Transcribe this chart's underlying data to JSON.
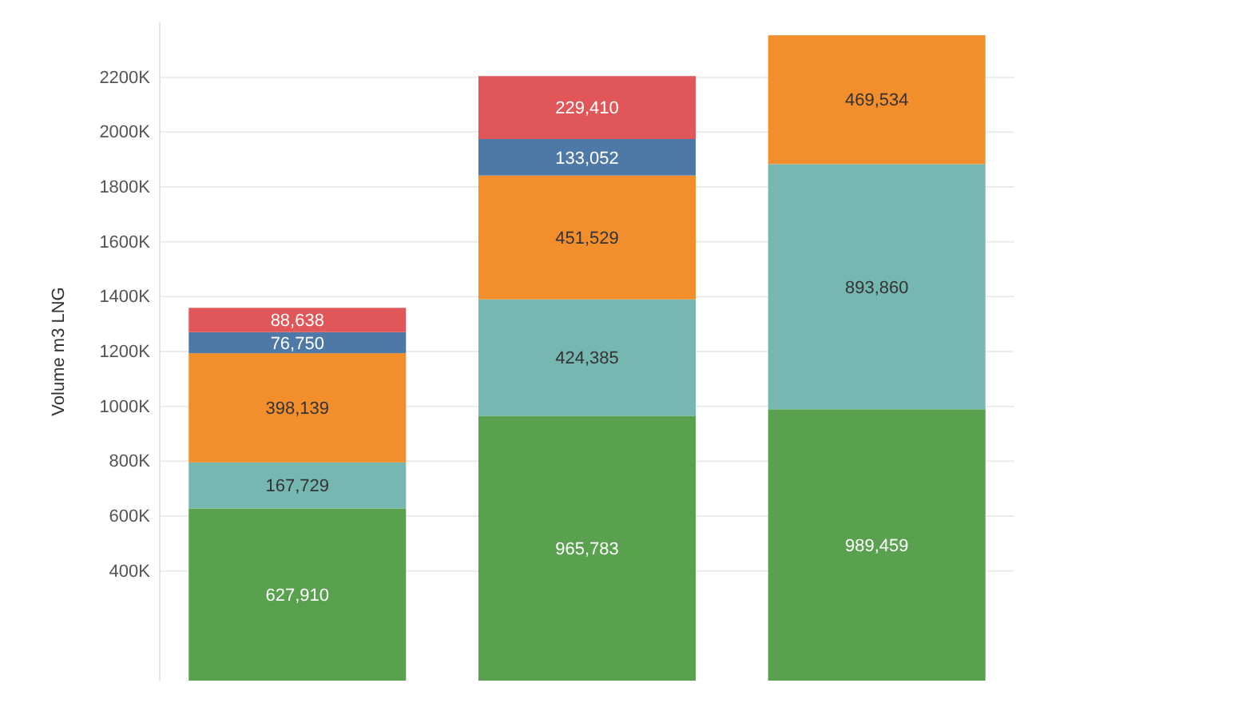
{
  "chart_data": {
    "type": "bar",
    "stacked": true,
    "ylabel": "Volume m3 LNG",
    "categories": [
      null,
      null,
      null
    ],
    "series": [
      {
        "color": "#59a14f",
        "values": [
          627910,
          965783,
          989459
        ],
        "value_labels": [
          "627,910",
          "965,783",
          "989,459"
        ]
      },
      {
        "color": "#76b7b2",
        "values": [
          167729,
          424385,
          893860
        ],
        "value_labels": [
          "167,729",
          "424,385",
          "893,860"
        ]
      },
      {
        "color": "#f28e2b",
        "values": [
          398139,
          451529,
          469534
        ],
        "value_labels": [
          "398,139",
          "451,529",
          "469,534"
        ]
      },
      {
        "color": "#4e79a7",
        "values": [
          76750,
          133052,
          null
        ],
        "value_labels": [
          "76,750",
          "133,052",
          null
        ]
      },
      {
        "color": "#e15759",
        "values": [
          88638,
          229410,
          null
        ],
        "value_labels": [
          "88,638",
          "229,410",
          null
        ]
      }
    ],
    "ylim": [
      0,
      2400000
    ],
    "yticks": [
      {
        "value": 400000,
        "label": "400K"
      },
      {
        "value": 600000,
        "label": "600K"
      },
      {
        "value": 800000,
        "label": "800K"
      },
      {
        "value": 1000000,
        "label": "1000K"
      },
      {
        "value": 1200000,
        "label": "1200K"
      },
      {
        "value": 1400000,
        "label": "1400K"
      },
      {
        "value": 1600000,
        "label": "1600K"
      },
      {
        "value": 1800000,
        "label": "1800K"
      },
      {
        "value": 2000000,
        "label": "2000K"
      },
      {
        "value": 2200000,
        "label": "2200K"
      }
    ],
    "grid": "y"
  }
}
